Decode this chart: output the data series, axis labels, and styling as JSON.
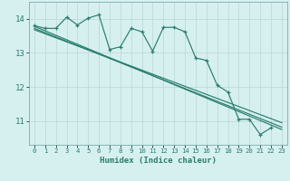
{
  "title": "",
  "xlabel": "Humidex (Indice chaleur)",
  "bg_color": "#d6f0f0",
  "grid_color": "#c0dada",
  "line_color": "#2a7d6d",
  "xlim": [
    -0.5,
    23.5
  ],
  "ylim": [
    10.3,
    14.5
  ],
  "yticks": [
    11,
    12,
    13,
    14
  ],
  "xticks": [
    0,
    1,
    2,
    3,
    4,
    5,
    6,
    7,
    8,
    9,
    10,
    11,
    12,
    13,
    14,
    15,
    16,
    17,
    18,
    19,
    20,
    21,
    22,
    23
  ],
  "series1_x": [
    0,
    1,
    2,
    3,
    4,
    5,
    6,
    7,
    8,
    9,
    10,
    11,
    12,
    13,
    14,
    15,
    16,
    17,
    18,
    19,
    20,
    21,
    22
  ],
  "series1_y": [
    13.8,
    13.72,
    13.72,
    14.05,
    13.82,
    14.02,
    14.12,
    13.1,
    13.18,
    13.72,
    13.62,
    13.05,
    13.75,
    13.75,
    13.62,
    12.85,
    12.78,
    12.05,
    11.85,
    11.05,
    11.05,
    10.6,
    10.8
  ],
  "trend1_x": [
    0,
    23
  ],
  "trend1_y": [
    13.78,
    10.75
  ],
  "trend2_x": [
    0,
    23
  ],
  "trend2_y": [
    13.72,
    10.82
  ],
  "trend3_x": [
    0,
    23
  ],
  "trend3_y": [
    13.68,
    10.95
  ]
}
